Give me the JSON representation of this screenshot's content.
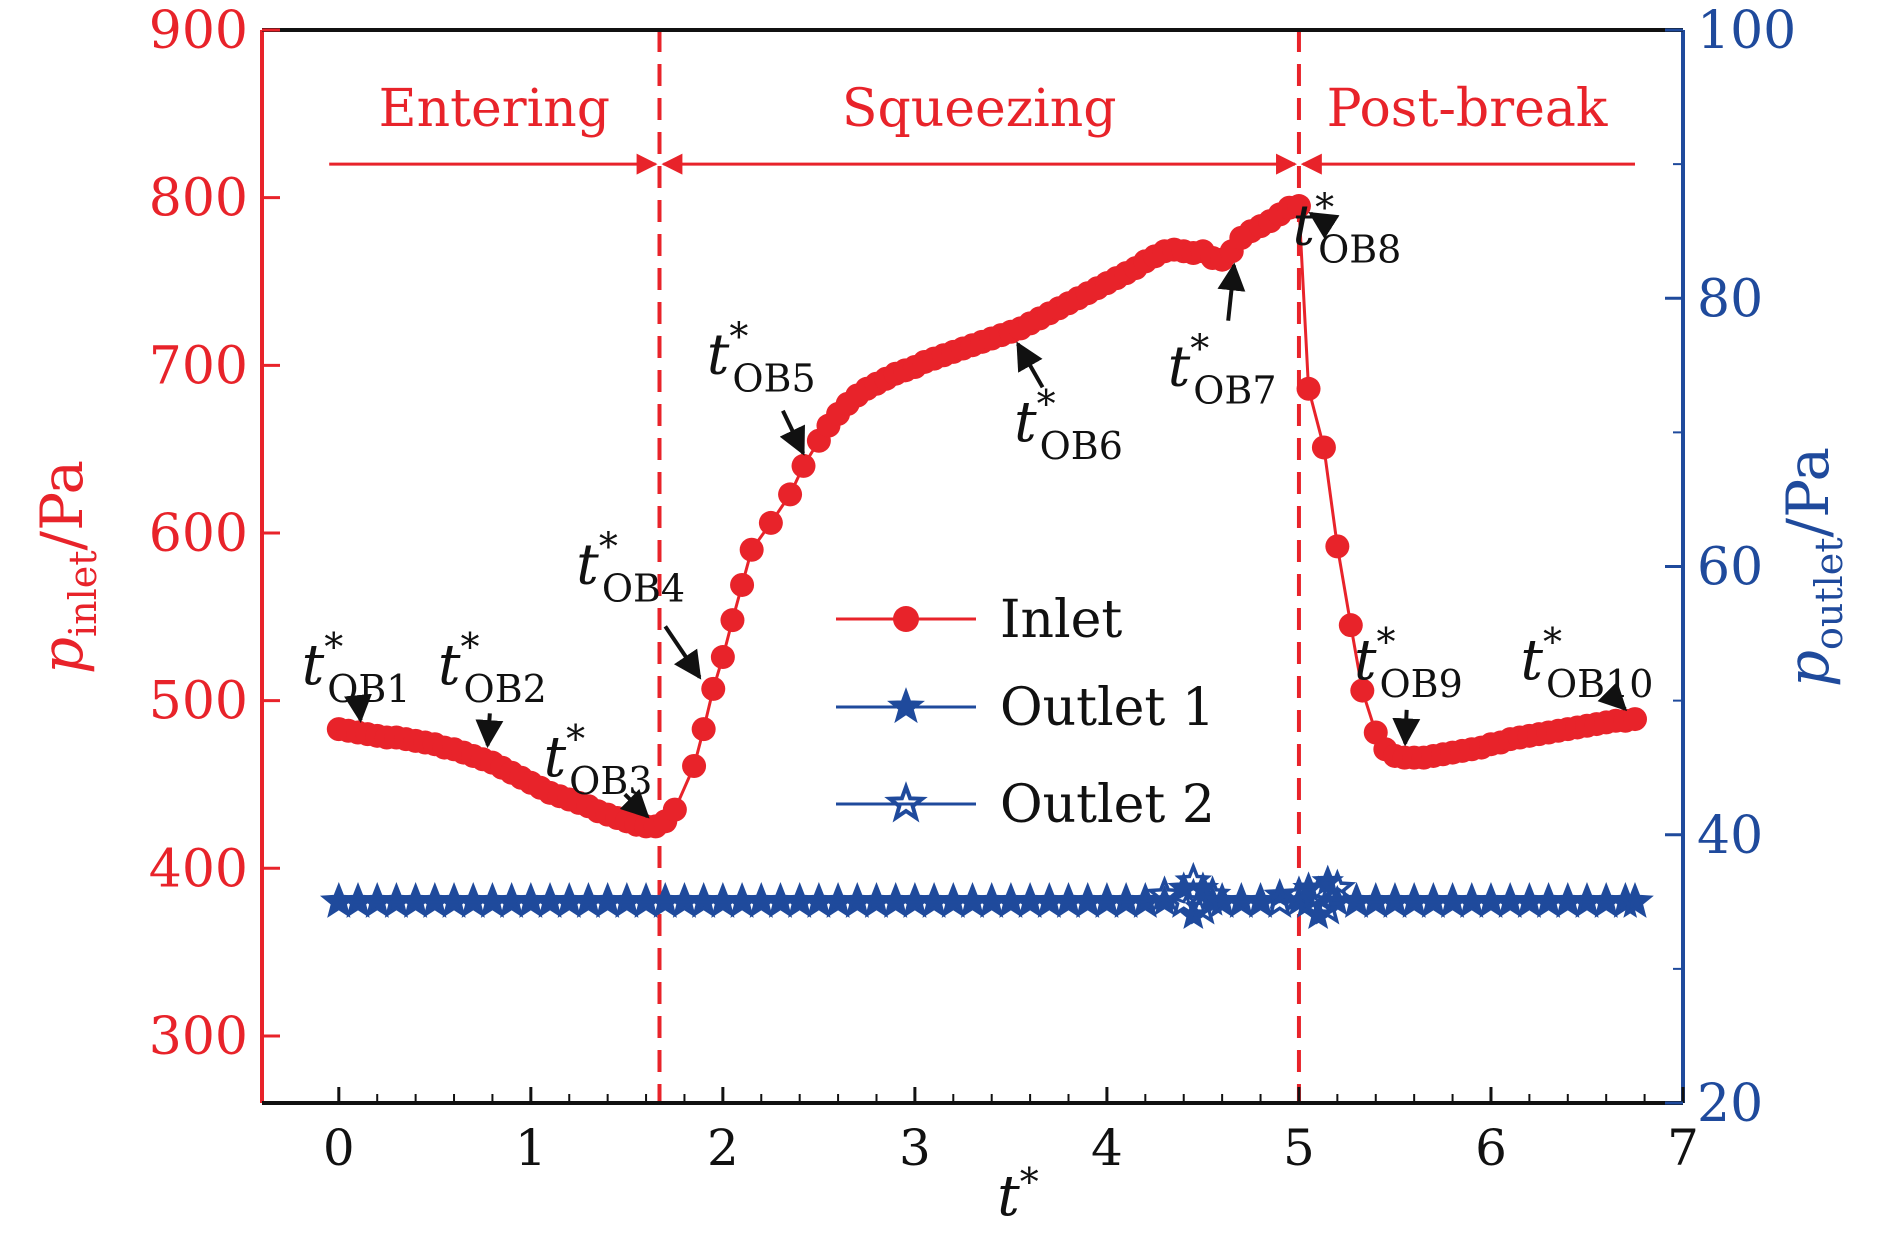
{
  "chart_data": {
    "type": "line",
    "xlabel": "t*",
    "ylabel_left": {
      "symbol": "p",
      "subscript": "inlet",
      "unit": "/Pa"
    },
    "ylabel_right": {
      "symbol": "p",
      "subscript": "outlet",
      "unit": "/Pa"
    },
    "xlim": [
      -0.4,
      7
    ],
    "ylim_left": [
      260,
      900
    ],
    "ylim_right": [
      20,
      100
    ],
    "x_ticks": [
      "0",
      "1",
      "2",
      "3",
      "4",
      "5",
      "6",
      "7"
    ],
    "y_left_ticks": [
      "300",
      "400",
      "500",
      "600",
      "700",
      "800",
      "900"
    ],
    "y_right_ticks": [
      "20",
      "40",
      "60",
      "80",
      "100"
    ],
    "grid": false,
    "legend_position": "center",
    "colors": {
      "inlet": "#e8232a",
      "outlet": "#1f4a9c",
      "axis_left": "#e8232a",
      "axis_right": "#1f4a9c",
      "annotation": "#111111"
    },
    "phase_boundaries": [
      1.67,
      5.0
    ],
    "phases": [
      {
        "label": "Entering",
        "x_start": -0.05,
        "x_end": 1.67
      },
      {
        "label": "Squeezing",
        "x_start": 1.67,
        "x_end": 5.0
      },
      {
        "label": "Post-break",
        "x_start": 5.0,
        "x_end": 6.75
      }
    ],
    "phase_arrow_y": 820,
    "series": [
      {
        "name": "Inlet",
        "axis": "left",
        "marker": "circle",
        "points": [
          [
            0.0,
            483
          ],
          [
            0.05,
            482
          ],
          [
            0.1,
            481
          ],
          [
            0.15,
            480
          ],
          [
            0.2,
            479
          ],
          [
            0.25,
            478
          ],
          [
            0.3,
            478
          ],
          [
            0.35,
            477
          ],
          [
            0.4,
            476
          ],
          [
            0.45,
            475
          ],
          [
            0.5,
            474
          ],
          [
            0.55,
            472
          ],
          [
            0.6,
            471
          ],
          [
            0.65,
            469
          ],
          [
            0.7,
            467
          ],
          [
            0.75,
            465
          ],
          [
            0.8,
            463
          ],
          [
            0.85,
            460
          ],
          [
            0.9,
            457
          ],
          [
            0.95,
            454
          ],
          [
            1.0,
            451
          ],
          [
            1.05,
            448
          ],
          [
            1.1,
            445
          ],
          [
            1.15,
            443
          ],
          [
            1.2,
            441
          ],
          [
            1.25,
            439
          ],
          [
            1.3,
            437
          ],
          [
            1.35,
            434
          ],
          [
            1.4,
            432
          ],
          [
            1.45,
            430
          ],
          [
            1.5,
            428
          ],
          [
            1.55,
            426
          ],
          [
            1.6,
            425
          ],
          [
            1.65,
            425
          ],
          [
            1.7,
            428
          ],
          [
            1.75,
            435
          ],
          [
            1.85,
            461
          ],
          [
            1.9,
            483
          ],
          [
            1.95,
            507
          ],
          [
            2.0,
            526
          ],
          [
            2.05,
            548
          ],
          [
            2.1,
            569
          ],
          [
            2.15,
            590
          ],
          [
            2.25,
            606
          ],
          [
            2.35,
            623
          ],
          [
            2.42,
            640
          ],
          [
            2.5,
            655
          ],
          [
            2.55,
            664
          ],
          [
            2.6,
            671
          ],
          [
            2.65,
            677
          ],
          [
            2.7,
            682
          ],
          [
            2.75,
            686
          ],
          [
            2.8,
            689
          ],
          [
            2.85,
            692
          ],
          [
            2.9,
            695
          ],
          [
            2.95,
            697
          ],
          [
            3.0,
            699
          ],
          [
            3.05,
            702
          ],
          [
            3.1,
            704
          ],
          [
            3.15,
            706
          ],
          [
            3.2,
            708
          ],
          [
            3.25,
            710
          ],
          [
            3.3,
            712
          ],
          [
            3.35,
            714
          ],
          [
            3.4,
            716
          ],
          [
            3.45,
            718
          ],
          [
            3.5,
            720
          ],
          [
            3.55,
            722
          ],
          [
            3.6,
            725
          ],
          [
            3.65,
            728
          ],
          [
            3.7,
            731
          ],
          [
            3.75,
            734
          ],
          [
            3.8,
            737
          ],
          [
            3.85,
            740
          ],
          [
            3.9,
            743
          ],
          [
            3.95,
            746
          ],
          [
            4.0,
            749
          ],
          [
            4.05,
            752
          ],
          [
            4.1,
            755
          ],
          [
            4.15,
            758
          ],
          [
            4.2,
            762
          ],
          [
            4.25,
            765
          ],
          [
            4.3,
            768
          ],
          [
            4.35,
            769
          ],
          [
            4.4,
            768
          ],
          [
            4.45,
            767
          ],
          [
            4.5,
            768
          ],
          [
            4.55,
            764
          ],
          [
            4.6,
            763
          ],
          [
            4.65,
            768
          ],
          [
            4.7,
            776
          ],
          [
            4.75,
            780
          ],
          [
            4.8,
            783
          ],
          [
            4.85,
            786
          ],
          [
            4.9,
            790
          ],
          [
            4.95,
            794
          ],
          [
            5.0,
            795
          ],
          [
            5.05,
            686
          ],
          [
            5.13,
            651
          ],
          [
            5.2,
            592
          ],
          [
            5.27,
            545
          ],
          [
            5.33,
            506
          ],
          [
            5.4,
            481
          ],
          [
            5.45,
            471
          ],
          [
            5.5,
            467
          ],
          [
            5.55,
            466
          ],
          [
            5.6,
            466
          ],
          [
            5.65,
            466
          ],
          [
            5.7,
            467
          ],
          [
            5.75,
            468
          ],
          [
            5.8,
            469
          ],
          [
            5.85,
            470
          ],
          [
            5.9,
            471
          ],
          [
            5.95,
            472
          ],
          [
            6.0,
            474
          ],
          [
            6.05,
            475
          ],
          [
            6.1,
            477
          ],
          [
            6.15,
            478
          ],
          [
            6.2,
            479
          ],
          [
            6.25,
            480
          ],
          [
            6.3,
            481
          ],
          [
            6.35,
            482
          ],
          [
            6.4,
            483
          ],
          [
            6.45,
            484
          ],
          [
            6.5,
            485
          ],
          [
            6.55,
            486
          ],
          [
            6.6,
            487
          ],
          [
            6.65,
            488
          ],
          [
            6.7,
            488
          ],
          [
            6.75,
            489
          ]
        ]
      },
      {
        "name": "Outlet 1",
        "axis": "right",
        "marker": "star-filled",
        "points": [
          [
            0.0,
            35
          ],
          [
            0.1,
            35
          ],
          [
            0.2,
            35
          ],
          [
            0.3,
            35
          ],
          [
            0.4,
            35
          ],
          [
            0.5,
            35
          ],
          [
            0.6,
            35
          ],
          [
            0.7,
            35
          ],
          [
            0.8,
            35
          ],
          [
            0.9,
            35
          ],
          [
            1.0,
            35
          ],
          [
            1.1,
            35
          ],
          [
            1.2,
            35
          ],
          [
            1.3,
            35
          ],
          [
            1.4,
            35
          ],
          [
            1.5,
            35
          ],
          [
            1.6,
            35
          ],
          [
            1.7,
            35
          ],
          [
            1.8,
            35
          ],
          [
            1.9,
            35
          ],
          [
            2.0,
            35
          ],
          [
            2.1,
            35
          ],
          [
            2.2,
            35
          ],
          [
            2.3,
            35
          ],
          [
            2.4,
            35
          ],
          [
            2.5,
            35
          ],
          [
            2.6,
            35
          ],
          [
            2.7,
            35
          ],
          [
            2.8,
            35
          ],
          [
            2.9,
            35
          ],
          [
            3.0,
            35
          ],
          [
            3.1,
            35
          ],
          [
            3.2,
            35
          ],
          [
            3.3,
            35
          ],
          [
            3.4,
            35
          ],
          [
            3.5,
            35
          ],
          [
            3.6,
            35
          ],
          [
            3.7,
            35
          ],
          [
            3.8,
            35
          ],
          [
            3.9,
            35
          ],
          [
            4.0,
            35
          ],
          [
            4.1,
            35
          ],
          [
            4.2,
            35
          ],
          [
            4.3,
            35
          ],
          [
            4.4,
            36
          ],
          [
            4.45,
            34
          ],
          [
            4.5,
            36
          ],
          [
            4.55,
            35
          ],
          [
            4.6,
            35
          ],
          [
            4.7,
            35
          ],
          [
            4.8,
            35
          ],
          [
            4.9,
            35.5
          ],
          [
            5.0,
            35
          ],
          [
            5.05,
            36
          ],
          [
            5.1,
            34
          ],
          [
            5.15,
            36.5
          ],
          [
            5.2,
            35
          ],
          [
            5.3,
            35
          ],
          [
            5.4,
            35
          ],
          [
            5.5,
            35
          ],
          [
            5.6,
            35
          ],
          [
            5.7,
            35
          ],
          [
            5.8,
            35
          ],
          [
            5.9,
            35
          ],
          [
            6.0,
            35
          ],
          [
            6.1,
            35
          ],
          [
            6.2,
            35
          ],
          [
            6.3,
            35
          ],
          [
            6.4,
            35
          ],
          [
            6.5,
            35
          ],
          [
            6.6,
            35
          ],
          [
            6.7,
            35
          ],
          [
            6.75,
            35
          ]
        ]
      },
      {
        "name": "Outlet 2",
        "axis": "right",
        "marker": "star-open",
        "points": [
          [
            0.0,
            35
          ],
          [
            0.1,
            35
          ],
          [
            0.2,
            35
          ],
          [
            0.3,
            35
          ],
          [
            0.4,
            35
          ],
          [
            0.5,
            35
          ],
          [
            0.6,
            35
          ],
          [
            0.7,
            35
          ],
          [
            0.8,
            35
          ],
          [
            0.9,
            35
          ],
          [
            1.0,
            35
          ],
          [
            1.1,
            35
          ],
          [
            1.2,
            35
          ],
          [
            1.3,
            35
          ],
          [
            1.4,
            35
          ],
          [
            1.5,
            35
          ],
          [
            1.6,
            35
          ],
          [
            1.7,
            35
          ],
          [
            1.8,
            35
          ],
          [
            1.9,
            35
          ],
          [
            2.0,
            35
          ],
          [
            2.1,
            35
          ],
          [
            2.2,
            35
          ],
          [
            2.3,
            35
          ],
          [
            2.4,
            35
          ],
          [
            2.5,
            35
          ],
          [
            2.6,
            35
          ],
          [
            2.7,
            35
          ],
          [
            2.8,
            35
          ],
          [
            2.9,
            35
          ],
          [
            3.0,
            35
          ],
          [
            3.1,
            35
          ],
          [
            3.2,
            35
          ],
          [
            3.3,
            35
          ],
          [
            3.4,
            35
          ],
          [
            3.5,
            35
          ],
          [
            3.6,
            35
          ],
          [
            3.7,
            35
          ],
          [
            3.8,
            35
          ],
          [
            3.9,
            35
          ],
          [
            4.0,
            35
          ],
          [
            4.1,
            35
          ],
          [
            4.2,
            35
          ],
          [
            4.3,
            35.5
          ],
          [
            4.4,
            35
          ],
          [
            4.45,
            36.5
          ],
          [
            4.5,
            34.5
          ],
          [
            4.55,
            35.5
          ],
          [
            4.6,
            35
          ],
          [
            4.7,
            35
          ],
          [
            4.8,
            35
          ],
          [
            4.9,
            35
          ],
          [
            5.0,
            35.5
          ],
          [
            5.05,
            35
          ],
          [
            5.1,
            35.5
          ],
          [
            5.15,
            34.5
          ],
          [
            5.2,
            36
          ],
          [
            5.3,
            35
          ],
          [
            5.4,
            35
          ],
          [
            5.5,
            35
          ],
          [
            5.6,
            35
          ],
          [
            5.7,
            35
          ],
          [
            5.8,
            35
          ],
          [
            5.9,
            35
          ],
          [
            6.0,
            35
          ],
          [
            6.1,
            35
          ],
          [
            6.2,
            35
          ],
          [
            6.3,
            35
          ],
          [
            6.4,
            35
          ],
          [
            6.5,
            35
          ],
          [
            6.6,
            35
          ],
          [
            6.7,
            35
          ],
          [
            6.75,
            35
          ]
        ]
      }
    ],
    "annotations": [
      {
        "base": "t",
        "sup": "*",
        "sub": "OB1",
        "label_at": [
          0.09,
          510
        ],
        "point": [
          0.12,
          480
        ]
      },
      {
        "base": "t",
        "sup": "*",
        "sub": "OB2",
        "label_at": [
          0.8,
          510
        ],
        "point": [
          0.77,
          465
        ]
      },
      {
        "base": "t",
        "sup": "*",
        "sub": "OB3",
        "label_at": [
          1.35,
          455
        ],
        "point": [
          1.66,
          425
        ]
      },
      {
        "base": "t",
        "sup": "*",
        "sub": "OB4",
        "label_at": [
          1.52,
          570
        ],
        "point": [
          1.92,
          507
        ]
      },
      {
        "base": "t",
        "sup": "*",
        "sub": "OB5",
        "label_at": [
          2.2,
          695
        ],
        "point": [
          2.45,
          640
        ]
      },
      {
        "base": "t",
        "sup": "*",
        "sub": "OB6",
        "label_at": [
          3.8,
          655
        ],
        "point": [
          3.5,
          720
        ]
      },
      {
        "base": "t",
        "sup": "*",
        "sub": "OB7",
        "label_at": [
          4.6,
          688
        ],
        "point": [
          4.67,
          768
        ]
      },
      {
        "base": "t",
        "sup": "*",
        "sub": "OB8",
        "label_at": [
          5.25,
          772
        ],
        "point": [
          5.0,
          795
        ]
      },
      {
        "base": "t",
        "sup": "*",
        "sub": "OB9",
        "label_at": [
          5.57,
          513
        ],
        "point": [
          5.55,
          466
        ]
      },
      {
        "base": "t",
        "sup": "*",
        "sub": "OB10",
        "label_at": [
          6.5,
          513
        ],
        "point": [
          6.75,
          489
        ]
      }
    ]
  }
}
